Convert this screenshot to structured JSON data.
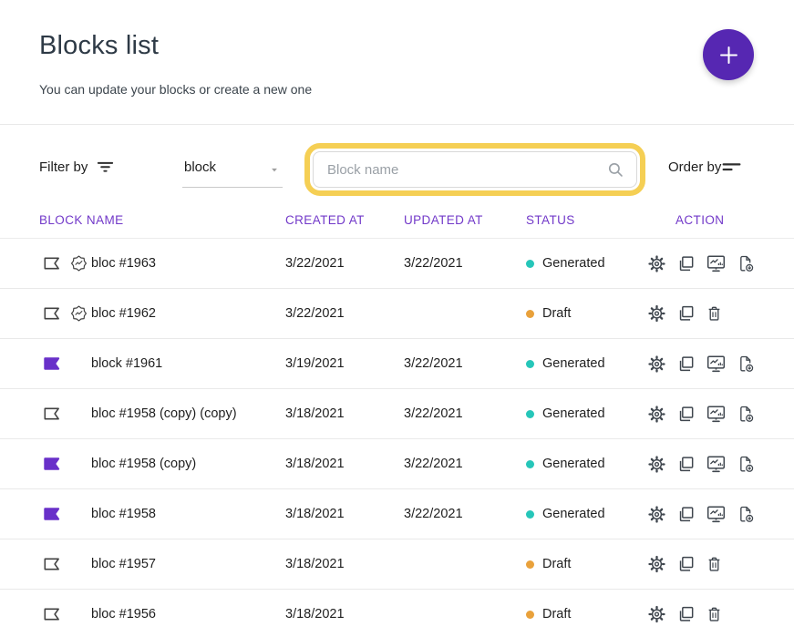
{
  "colors": {
    "accent_purple": "#5627b2",
    "flag_purple": "#6930c9",
    "table_header_purple": "#7239c9",
    "status_generated_teal": "#26c6b9",
    "status_draft_orange": "#e9a13b",
    "search_highlight_yellow": "#f5cf54"
  },
  "header": {
    "title": "Blocks list",
    "subtitle": "You can update your blocks or create a new one",
    "add_button_icon": "plus"
  },
  "filters": {
    "filter_by_label": "Filter by",
    "filter_icon": "filter-lines",
    "type_select": {
      "value": "block",
      "chevron_icon": "chevron-down"
    },
    "search": {
      "placeholder": "Block name",
      "icon": "magnifier",
      "value": ""
    },
    "order_by_label": "Order by",
    "order_icon": "sort-lines"
  },
  "table": {
    "columns": [
      "BLOCK NAME",
      "CREATED AT",
      "UPDATED AT",
      "STATUS",
      "ACTION"
    ],
    "status_colors": {
      "Generated": "#26c6b9",
      "Draft": "#e9a13b"
    },
    "rows": [
      {
        "flag": "outline",
        "badge": true,
        "name": "bloc #1963",
        "created": "3/22/2021",
        "updated": "3/22/2021",
        "status": "Generated",
        "actions": [
          "settings",
          "copy",
          "export",
          "download"
        ]
      },
      {
        "flag": "outline",
        "badge": true,
        "name": "bloc #1962",
        "created": "3/22/2021",
        "updated": "",
        "status": "Draft",
        "actions": [
          "settings",
          "copy",
          "delete"
        ]
      },
      {
        "flag": "filled",
        "badge": false,
        "name": "block #1961",
        "created": "3/19/2021",
        "updated": "3/22/2021",
        "status": "Generated",
        "actions": [
          "settings",
          "copy",
          "export",
          "download"
        ]
      },
      {
        "flag": "outline",
        "badge": false,
        "name": "bloc #1958 (copy) (copy)",
        "created": "3/18/2021",
        "updated": "3/22/2021",
        "status": "Generated",
        "actions": [
          "settings",
          "copy",
          "export",
          "download"
        ]
      },
      {
        "flag": "filled",
        "badge": false,
        "name": "bloc #1958 (copy)",
        "created": "3/18/2021",
        "updated": "3/22/2021",
        "status": "Generated",
        "actions": [
          "settings",
          "copy",
          "export",
          "download"
        ]
      },
      {
        "flag": "filled",
        "badge": false,
        "name": "bloc #1958",
        "created": "3/18/2021",
        "updated": "3/22/2021",
        "status": "Generated",
        "actions": [
          "settings",
          "copy",
          "export",
          "download"
        ]
      },
      {
        "flag": "outline",
        "badge": false,
        "name": "bloc #1957",
        "created": "3/18/2021",
        "updated": "",
        "status": "Draft",
        "actions": [
          "settings",
          "copy",
          "delete"
        ]
      },
      {
        "flag": "outline",
        "badge": false,
        "name": "bloc #1956",
        "created": "3/18/2021",
        "updated": "",
        "status": "Draft",
        "actions": [
          "settings",
          "copy",
          "delete"
        ]
      }
    ]
  }
}
